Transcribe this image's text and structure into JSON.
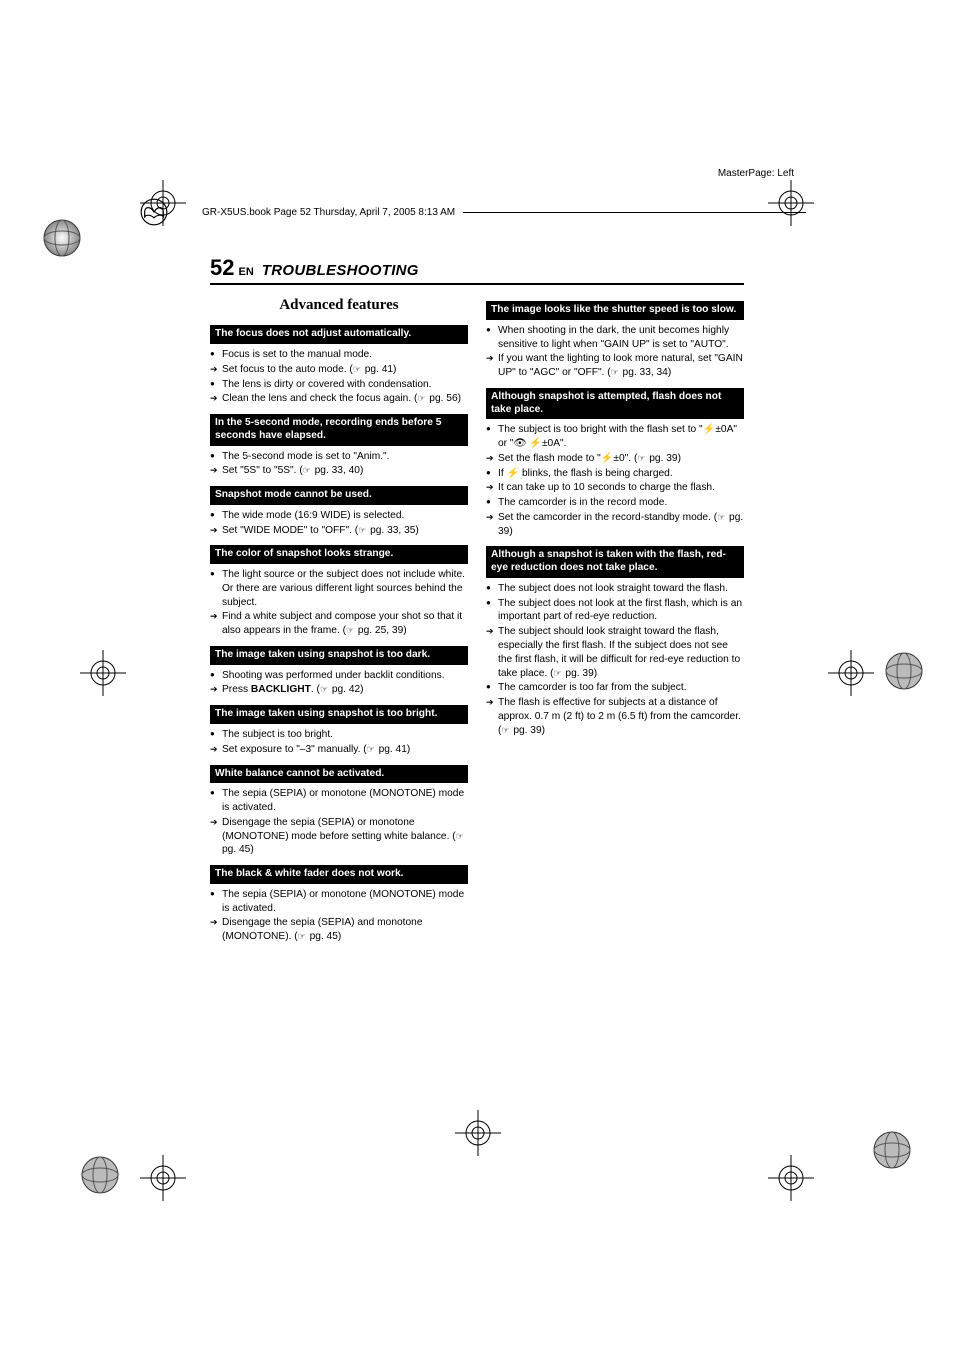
{
  "meta": {
    "masterpage": "MasterPage: Left",
    "bookline": "GR-X5US.book  Page 52  Thursday, April 7, 2005  8:13 AM"
  },
  "header": {
    "page_number": "52",
    "lang": "EN",
    "section": "TROUBLESHOOTING"
  },
  "left": {
    "subheading": "Advanced features",
    "blocks": [
      {
        "title": "The focus does not adjust automatically.",
        "items": [
          {
            "t": "bullet",
            "text": "Focus is set to the manual mode."
          },
          {
            "t": "arrow",
            "text": "Set focus to the auto mode. (☞ pg. 41)"
          },
          {
            "t": "bullet",
            "text": "The lens is dirty or covered with condensation."
          },
          {
            "t": "arrow",
            "text": "Clean the lens and check the focus again. (☞ pg. 56)"
          }
        ]
      },
      {
        "title": "In the 5-second mode, recording ends before 5 seconds have elapsed.",
        "items": [
          {
            "t": "bullet",
            "text": "The 5-second mode is set to \"Anim.\"."
          },
          {
            "t": "arrow",
            "text": "Set \"5S\" to \"5S\". (☞ pg. 33, 40)"
          }
        ]
      },
      {
        "title": "Snapshot mode cannot be used.",
        "items": [
          {
            "t": "bullet",
            "text": "The wide mode (16:9 WIDE) is selected."
          },
          {
            "t": "arrow",
            "text": "Set \"WIDE MODE\" to \"OFF\". (☞ pg. 33, 35)"
          }
        ]
      },
      {
        "title": "The color of snapshot looks strange.",
        "items": [
          {
            "t": "bullet",
            "text": "The light source or the subject does not include white. Or there are various different light sources behind the subject."
          },
          {
            "t": "arrow",
            "text": "Find a white subject and compose your shot so that it also appears in the frame. (☞ pg. 25, 39)"
          }
        ]
      },
      {
        "title": "The image taken using snapshot is too dark.",
        "items": [
          {
            "t": "bullet",
            "text": "Shooting was performed under backlit conditions."
          },
          {
            "t": "arrow",
            "html": "Press <span class=\"bold\">BACKLIGHT</span>. (☞ pg. 42)"
          }
        ]
      },
      {
        "title": "The image taken using snapshot is too bright.",
        "items": [
          {
            "t": "bullet",
            "text": "The subject is too bright."
          },
          {
            "t": "arrow",
            "text": "Set exposure to \"–3\" manually. (☞ pg. 41)"
          }
        ]
      },
      {
        "title": "White balance cannot be activated.",
        "items": [
          {
            "t": "bullet",
            "text": "The sepia (SEPIA) or monotone (MONOTONE) mode is activated."
          },
          {
            "t": "arrow",
            "text": "Disengage the sepia (SEPIA) or monotone (MONOTONE) mode before setting white balance. (☞ pg. 45)"
          }
        ]
      },
      {
        "title": "The black & white fader does not work.",
        "items": [
          {
            "t": "bullet",
            "text": "The sepia (SEPIA) or monotone (MONOTONE) mode is activated."
          },
          {
            "t": "arrow",
            "text": "Disengage the sepia (SEPIA) and monotone (MONOTONE). (☞ pg. 45)"
          }
        ]
      }
    ]
  },
  "right": {
    "blocks": [
      {
        "title": "The image looks like the shutter speed is too slow.",
        "items": [
          {
            "t": "bullet",
            "text": "When shooting in the dark, the unit becomes highly sensitive to light when \"GAIN UP\" is set to \"AUTO\"."
          },
          {
            "t": "arrow",
            "text": "If you want the lighting to look more natural, set \"GAIN UP\" to \"AGC\" or \"OFF\". (☞ pg. 33, 34)"
          }
        ]
      },
      {
        "title": "Although snapshot is attempted, flash does not take place.",
        "items": [
          {
            "t": "bullet",
            "html": "The subject is too bright with the flash set to \"<span class=\"flash-icon\">⚡</span>±0A\" or \"👁 <span class=\"flash-icon\">⚡</span>±0A\"."
          },
          {
            "t": "arrow",
            "html": "Set the flash mode to \"<span class=\"flash-icon\">⚡</span>±0\". (☞ pg. 39)"
          },
          {
            "t": "bullet",
            "html": "If <span class=\"flash-icon\">⚡</span> blinks, the flash is being charged."
          },
          {
            "t": "arrow",
            "text": "It can take up to 10 seconds to charge the flash."
          },
          {
            "t": "bullet",
            "text": "The camcorder is in the record mode."
          },
          {
            "t": "arrow",
            "text": "Set the camcorder in the record-standby mode. (☞ pg. 39)"
          }
        ]
      },
      {
        "title": "Although a snapshot is taken with the flash, red-eye reduction does not take place.",
        "items": [
          {
            "t": "bullet",
            "text": "The subject does not look straight toward the flash."
          },
          {
            "t": "bullet",
            "text": "The subject does not look at the first flash, which is an important part of red-eye reduction."
          },
          {
            "t": "arrow",
            "text": "The subject should look straight toward the flash, especially the first flash. If the subject does not see the first flash, it will be difficult for red-eye reduction to take place. (☞ pg. 39)"
          },
          {
            "t": "bullet",
            "text": "The camcorder is too far from the subject."
          },
          {
            "t": "arrow",
            "text": "The flash is effective for subjects at a distance of approx. 0.7 m (2 ft) to 2 m (6.5 ft) from the camcorder. (☞ pg. 39)"
          }
        ]
      }
    ]
  },
  "style": {
    "colors": {
      "text": "#000000",
      "bg": "#ffffff",
      "bar_bg": "#000000",
      "bar_fg": "#ffffff"
    }
  }
}
